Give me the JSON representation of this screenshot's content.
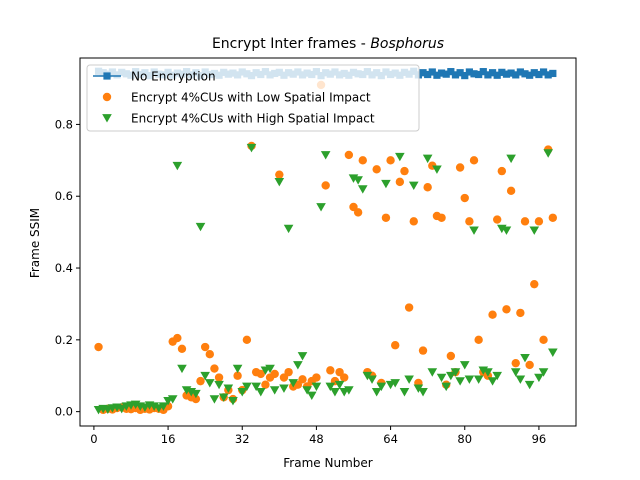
{
  "chart_data": {
    "type": "scatter",
    "title_main": "Encrypt Inter frames - ",
    "title_italic": "Bosphorus",
    "xlabel": "Frame Number",
    "ylabel": "Frame SSIM",
    "xlim": [
      -3,
      104
    ],
    "ylim": [
      -0.04,
      0.985
    ],
    "xticks": [
      0,
      16,
      32,
      48,
      64,
      80,
      96
    ],
    "yticks": [
      0.0,
      0.2,
      0.4,
      0.6,
      0.8
    ],
    "ytick_labels": [
      "0.0",
      "0.2",
      "0.4",
      "0.6",
      "0.8"
    ],
    "grid": false,
    "legend_position": "upper-left",
    "series": [
      {
        "name": "No Encryption",
        "color": "#1f77b4",
        "marker": "square-line",
        "x": [
          1,
          2,
          3,
          4,
          5,
          6,
          7,
          8,
          9,
          10,
          11,
          12,
          13,
          14,
          15,
          16,
          17,
          18,
          19,
          20,
          21,
          22,
          23,
          24,
          25,
          26,
          27,
          28,
          29,
          30,
          31,
          32,
          33,
          34,
          35,
          36,
          37,
          38,
          39,
          40,
          41,
          42,
          43,
          44,
          45,
          46,
          47,
          48,
          49,
          50,
          51,
          52,
          53,
          54,
          55,
          56,
          57,
          58,
          59,
          60,
          61,
          62,
          63,
          64,
          65,
          66,
          67,
          68,
          69,
          70,
          71,
          72,
          73,
          74,
          75,
          76,
          77,
          78,
          79,
          80,
          81,
          82,
          83,
          84,
          85,
          86,
          87,
          88,
          89,
          90,
          91,
          92,
          93,
          94,
          95,
          96,
          97,
          98,
          99
        ],
        "y": [
          0.948,
          0.944,
          0.94,
          0.946,
          0.938,
          0.945,
          0.941,
          0.937,
          0.947,
          0.939,
          0.944,
          0.936,
          0.946,
          0.94,
          0.938,
          0.945,
          0.937,
          0.943,
          0.94,
          0.947,
          0.938,
          0.944,
          0.936,
          0.946,
          0.939,
          0.942,
          0.937,
          0.945,
          0.94,
          0.943,
          0.938,
          0.946,
          0.941,
          0.936,
          0.944,
          0.939,
          0.947,
          0.938,
          0.942,
          0.945,
          0.937,
          0.944,
          0.94,
          0.946,
          0.938,
          0.943,
          0.939,
          0.947,
          0.936,
          0.944,
          0.94,
          0.946,
          0.938,
          0.942,
          0.937,
          0.945,
          0.941,
          0.939,
          0.947,
          0.938,
          0.944,
          0.936,
          0.946,
          0.939,
          0.943,
          0.937,
          0.945,
          0.94,
          0.948,
          0.938,
          0.944,
          0.939,
          0.946,
          0.937,
          0.943,
          0.94,
          0.947,
          0.938,
          0.944,
          0.936,
          0.946,
          0.941,
          0.939,
          0.947,
          0.938,
          0.944,
          0.937,
          0.945,
          0.94,
          0.943,
          0.938,
          0.946,
          0.941,
          0.937,
          0.944,
          0.939,
          0.946,
          0.938,
          0.942
        ]
      },
      {
        "name": "Encrypt 4%CUs with Low Spatial Impact",
        "color": "#ff7f0e",
        "marker": "circle",
        "x": [
          1,
          2,
          3,
          4,
          5,
          6,
          7,
          8,
          9,
          10,
          11,
          12,
          13,
          14,
          15,
          16,
          17,
          18,
          19,
          20,
          21,
          22,
          23,
          24,
          25,
          26,
          27,
          28,
          29,
          30,
          31,
          32,
          33,
          34,
          35,
          36,
          37,
          38,
          39,
          40,
          41,
          42,
          43,
          44,
          45,
          46,
          47,
          48,
          49,
          50,
          51,
          52,
          53,
          54,
          55,
          56,
          57,
          58,
          59,
          60,
          61,
          62,
          63,
          64,
          65,
          66,
          67,
          68,
          69,
          70,
          71,
          72,
          73,
          74,
          75,
          76,
          77,
          78,
          79,
          80,
          81,
          82,
          83,
          84,
          85,
          86,
          87,
          88,
          89,
          90,
          91,
          92,
          93,
          94,
          95,
          96,
          97,
          98,
          99
        ],
        "y": [
          0.18,
          0.005,
          0.008,
          0.006,
          0.01,
          0.012,
          0.008,
          0.007,
          0.01,
          0.005,
          0.008,
          0.006,
          0.01,
          0.008,
          0.005,
          0.015,
          0.195,
          0.205,
          0.175,
          0.045,
          0.04,
          0.035,
          0.085,
          0.18,
          0.16,
          0.12,
          0.095,
          0.04,
          0.06,
          0.035,
          0.1,
          0.06,
          0.2,
          0.74,
          0.11,
          0.105,
          0.075,
          0.095,
          0.105,
          0.66,
          0.095,
          0.11,
          0.07,
          0.075,
          0.09,
          0.07,
          0.085,
          0.095,
          0.91,
          0.63,
          0.115,
          0.085,
          0.11,
          0.095,
          0.715,
          0.57,
          0.555,
          0.7,
          0.11,
          0.1,
          0.675,
          0.08,
          0.54,
          0.7,
          0.185,
          0.64,
          0.67,
          0.29,
          0.53,
          0.08,
          0.17,
          0.625,
          0.685,
          0.545,
          0.54,
          0.075,
          0.155,
          0.11,
          0.68,
          0.595,
          0.53,
          0.7,
          0.2,
          0.11,
          0.1,
          0.27,
          0.535,
          0.67,
          0.285,
          0.615,
          0.135,
          0.275,
          0.53,
          0.13,
          0.355,
          0.53,
          0.2,
          0.73,
          0.54
        ]
      },
      {
        "name": "Encrypt 4%CUs with High Spatial Impact",
        "color": "#2ca02c",
        "marker": "triangle-down",
        "x": [
          1,
          2,
          3,
          4,
          5,
          6,
          7,
          8,
          9,
          10,
          11,
          12,
          13,
          14,
          15,
          16,
          17,
          18,
          19,
          20,
          21,
          22,
          23,
          24,
          25,
          26,
          27,
          28,
          29,
          30,
          31,
          32,
          33,
          34,
          35,
          36,
          37,
          38,
          39,
          40,
          41,
          42,
          43,
          44,
          45,
          46,
          47,
          48,
          49,
          50,
          51,
          52,
          53,
          54,
          55,
          56,
          57,
          58,
          59,
          60,
          61,
          62,
          63,
          64,
          65,
          66,
          67,
          68,
          69,
          70,
          71,
          72,
          73,
          74,
          75,
          76,
          77,
          78,
          79,
          80,
          81,
          82,
          83,
          84,
          85,
          86,
          87,
          88,
          89,
          90,
          91,
          92,
          93,
          94,
          95,
          96,
          97,
          98,
          99
        ],
        "y": [
          0.005,
          0.008,
          0.006,
          0.01,
          0.012,
          0.008,
          0.015,
          0.018,
          0.02,
          0.015,
          0.012,
          0.018,
          0.015,
          0.01,
          0.015,
          0.03,
          0.035,
          0.685,
          0.12,
          0.06,
          0.055,
          0.05,
          0.515,
          0.1,
          0.08,
          0.035,
          0.075,
          0.04,
          0.065,
          0.03,
          0.12,
          0.055,
          0.07,
          0.735,
          0.07,
          0.055,
          0.115,
          0.12,
          0.06,
          0.64,
          0.065,
          0.51,
          0.08,
          0.13,
          0.155,
          0.06,
          0.045,
          0.07,
          0.57,
          0.715,
          0.07,
          0.055,
          0.075,
          0.055,
          0.06,
          0.65,
          0.645,
          0.62,
          0.1,
          0.09,
          0.055,
          0.07,
          0.635,
          0.075,
          0.08,
          0.71,
          0.055,
          0.09,
          0.63,
          0.065,
          0.055,
          0.705,
          0.11,
          0.675,
          0.095,
          0.07,
          0.1,
          0.11,
          0.085,
          0.13,
          0.09,
          0.505,
          0.09,
          0.115,
          0.11,
          0.085,
          0.1,
          0.51,
          0.505,
          0.705,
          0.11,
          0.09,
          0.15,
          0.075,
          0.505,
          0.095,
          0.11,
          0.72,
          0.165
        ]
      }
    ]
  }
}
